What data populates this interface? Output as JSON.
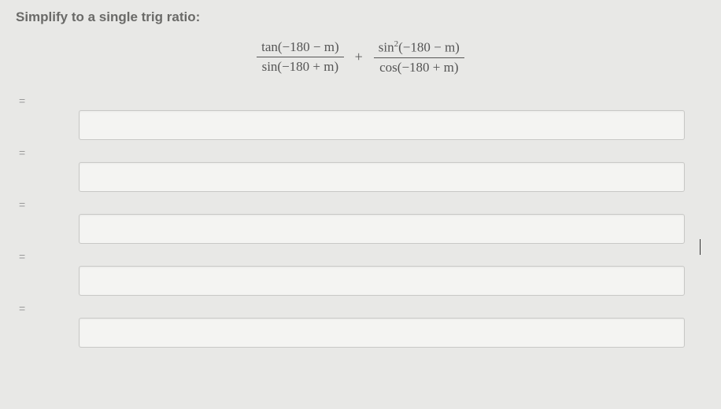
{
  "title": "Simplify to a single trig ratio:",
  "formula": {
    "frac1": {
      "numerator": "tan(−180 − m)",
      "denominator": "sin(−180 + m)"
    },
    "operator": "+",
    "frac2": {
      "numerator_html": "sin²(−180 − m)",
      "denominator": "cos(−180 + m)"
    }
  },
  "rows": [
    {
      "prefix": "="
    },
    {
      "prefix": "="
    },
    {
      "prefix": "="
    },
    {
      "prefix": "="
    },
    {
      "prefix": "="
    }
  ],
  "colors": {
    "background": "#e8e8e6",
    "input_bg": "#f4f4f2",
    "input_border": "#c8c8c6",
    "text": "#6a6a68",
    "formula_text": "#555"
  },
  "fonts": {
    "title_size": 17,
    "formula_size": 17,
    "formula_family": "Times New Roman"
  }
}
